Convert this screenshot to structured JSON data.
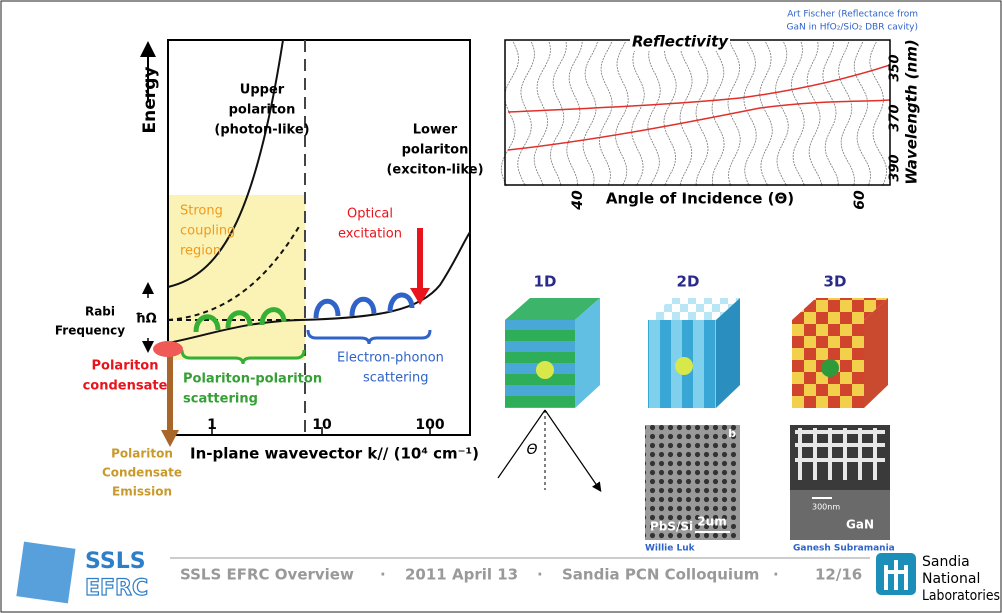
{
  "left_figure": {
    "y_axis_label": "Energy",
    "upper_polariton": [
      "Upper",
      "polariton",
      "(photon-like)"
    ],
    "lower_polariton": [
      "Lower",
      "polariton",
      "(exciton-like)"
    ],
    "strong_coupling": [
      "Strong",
      "coupling",
      "region"
    ],
    "optical_excitation": [
      "Optical",
      "excitation"
    ],
    "rabi": [
      "Rabi",
      "Frequency"
    ],
    "rabi_symbol": "ħΩ",
    "condensate": [
      "Polariton",
      "condensate"
    ],
    "pp_scattering": [
      "Polariton-polariton",
      "scattering"
    ],
    "ep_scattering": [
      "Electron-phonon",
      "scattering"
    ],
    "x_ticks": [
      "1",
      "10",
      "100"
    ],
    "x_axis_label": "In-plane wavevector k// (10⁴ cm⁻¹)",
    "emission": [
      "Polariton",
      "Condensate",
      "Emission"
    ]
  },
  "reflectivity": {
    "title": "Reflectivity",
    "credit": [
      "Art Fischer (Reflectance from",
      "GaN in HfO₂/SiO₂ DBR cavity)"
    ],
    "x_axis_label": "Angle of Incidence (Θ)",
    "x_ticks": [
      "40",
      "60"
    ],
    "y_axis_label": "Wavelength (nm)",
    "y_ticks": [
      "350",
      "370",
      "390"
    ]
  },
  "crystals": {
    "labels": [
      "1D",
      "2D",
      "3D"
    ],
    "angle": "Θ",
    "sem_2d": {
      "material": "PbS/Si",
      "scale": "2um",
      "panel": "b",
      "credit": "Willie Luk"
    },
    "sem_3d": {
      "scale": "300nm",
      "material": "GaN",
      "credit": "Ganesh Subramania"
    }
  },
  "footer": {
    "logo": [
      "SSLS",
      "EFRC"
    ],
    "items": [
      "SSLS EFRC Overview",
      "·",
      "2011 April 13",
      "·",
      "Sandia PCN Colloquium",
      "·",
      "12/16"
    ],
    "sandia": [
      "Sandia",
      "National",
      "Laboratories"
    ]
  }
}
